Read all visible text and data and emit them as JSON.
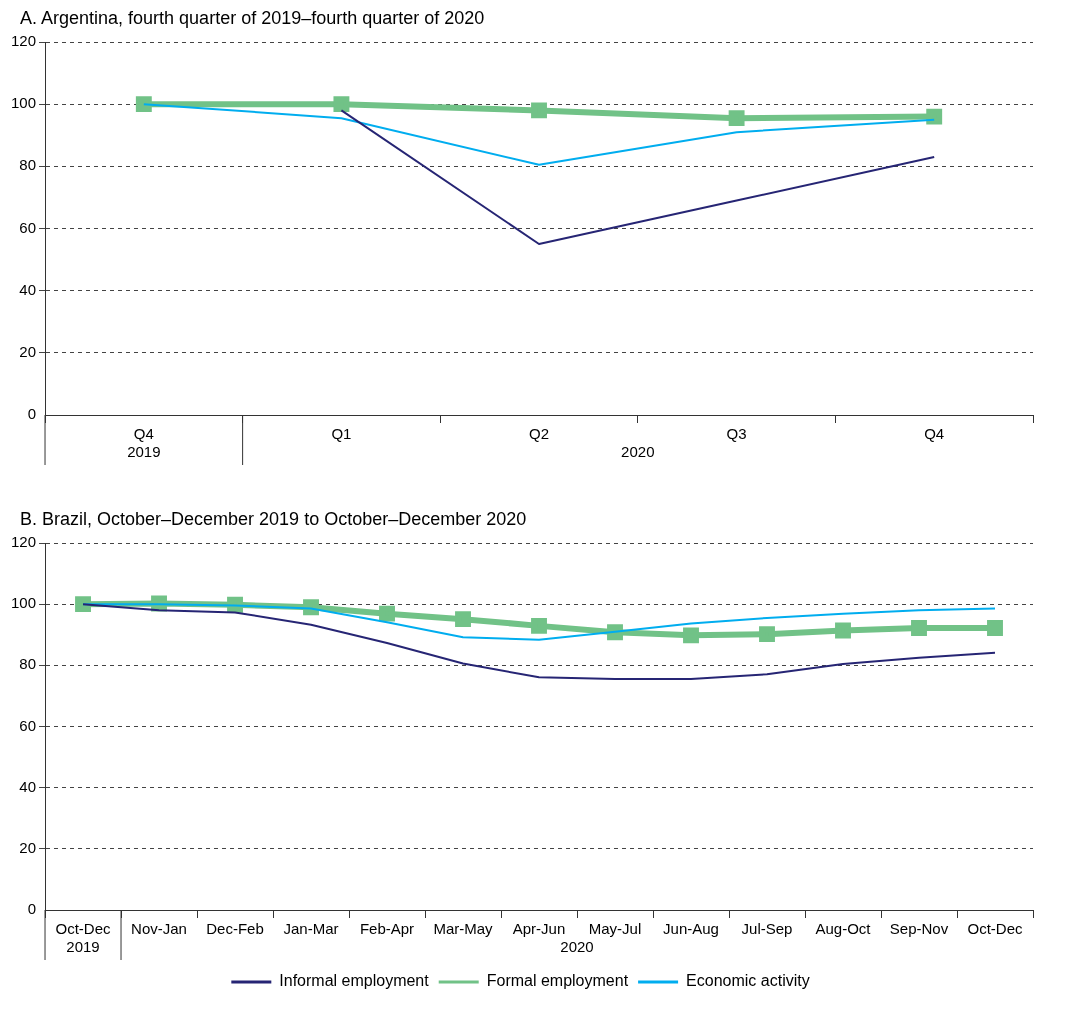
{
  "chart_data": [
    {
      "type": "line",
      "title": "A. Argentina, fourth quarter of 2019–fourth quarter of 2020",
      "categories": [
        "Q4",
        "Q1",
        "Q2",
        "Q3",
        "Q4"
      ],
      "annotations": [
        "2019",
        "2020"
      ],
      "ylim": [
        0,
        120
      ],
      "yticks": [
        0,
        20,
        40,
        60,
        80,
        100,
        120
      ],
      "grid": "y",
      "legend": false,
      "series": [
        {
          "color": "#262574",
          "marker": "none",
          "values": [
            null,
            98,
            55,
            69,
            83
          ]
        },
        {
          "color": "#71c287",
          "marker": "square",
          "values": [
            100,
            100,
            98,
            95.5,
            96
          ]
        },
        {
          "color": "#00adef",
          "marker": "none",
          "values": [
            100,
            95.5,
            80.5,
            91,
            95
          ]
        }
      ]
    },
    {
      "type": "line",
      "title": "B. Brazil, October–December 2019 to October–December 2020",
      "categories": [
        "Oct-Dec",
        "Nov-Jan",
        "Dec-Feb",
        "Jan-Mar",
        "Feb-Apr",
        "Mar-May",
        "Apr-Jun",
        "May-Jul",
        "Jun-Aug",
        "Jul-Sep",
        "Aug-Oct",
        "Sep-Nov",
        "Oct-Dec"
      ],
      "annotations": [
        "2019",
        "2020"
      ],
      "ylim": [
        0,
        120
      ],
      "yticks": [
        0,
        20,
        40,
        60,
        80,
        100,
        120
      ],
      "grid": "y",
      "legend": "bottom",
      "series": [
        {
          "name": "Informal employment",
          "color": "#262574",
          "marker": "none",
          "values": [
            100,
            98,
            97.3,
            93.3,
            87.3,
            80.6,
            76.1,
            75.5,
            75.5,
            77.1,
            80.4,
            82.5,
            84.1
          ]
        },
        {
          "name": "Formal employment",
          "color": "#71c287",
          "marker": "square",
          "values": [
            100,
            100.2,
            99.8,
            99,
            96.9,
            95.1,
            92.9,
            90.8,
            89.8,
            90.2,
            91.4,
            92.2,
            92.2
          ]
        },
        {
          "name": "Economic activity",
          "color": "#00adef",
          "marker": "none",
          "values": [
            100,
            100,
            99.6,
            98.6,
            94.1,
            89.2,
            88.4,
            91,
            93.7,
            95.5,
            96.9,
            98,
            98.6
          ]
        }
      ]
    }
  ]
}
